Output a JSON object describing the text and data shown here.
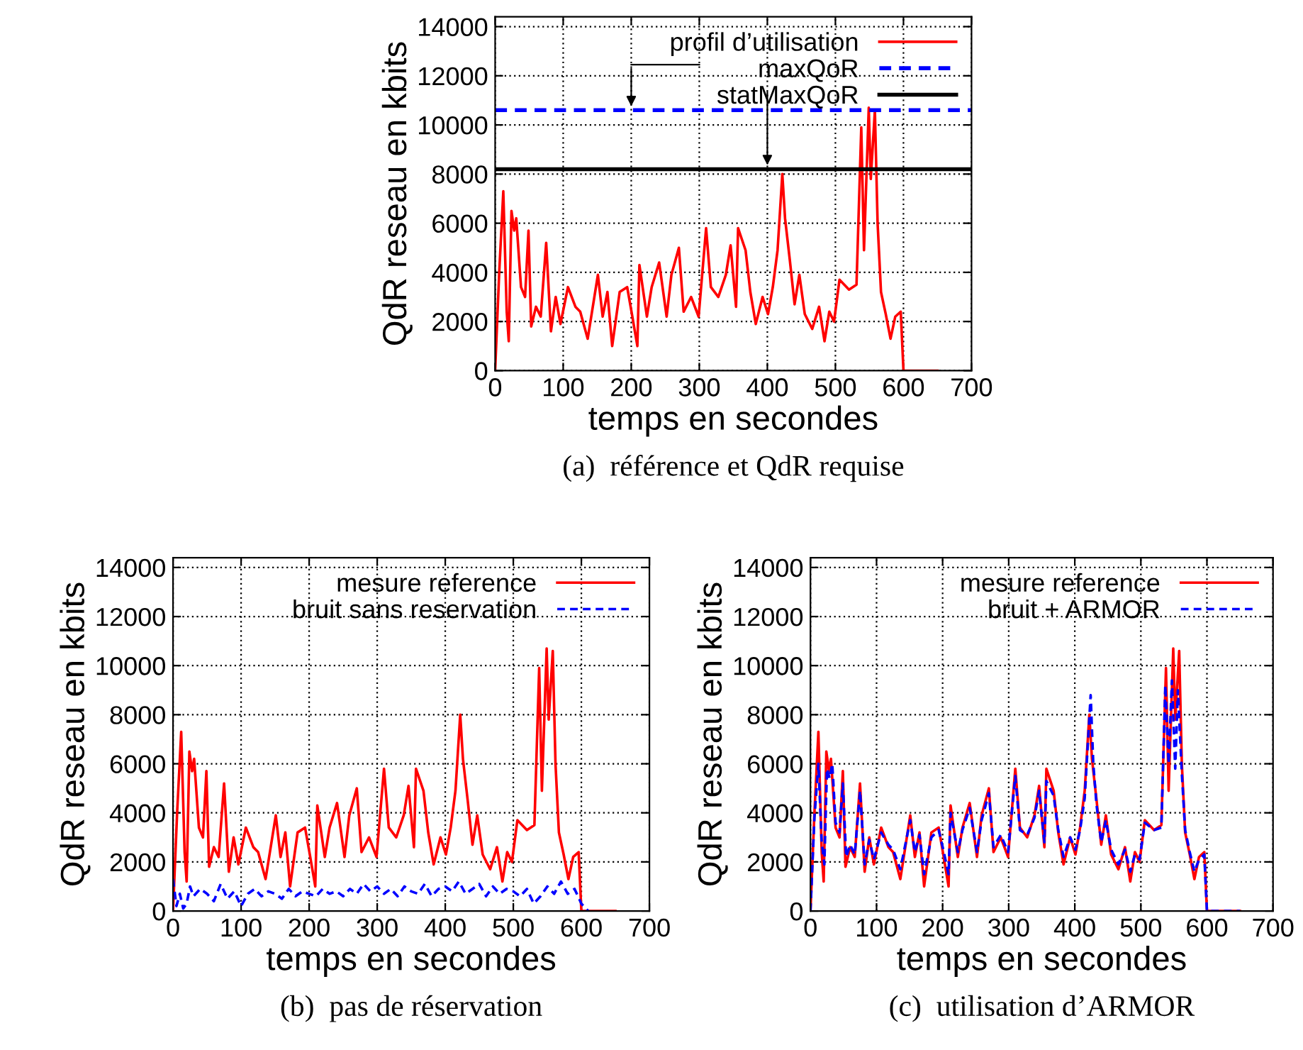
{
  "chart_data": [
    {
      "type": "line",
      "title": "(a)  référence et QdR requise",
      "xlabel": "temps en secondes",
      "ylabel": "QdR reseau en kbits",
      "xlim": [
        0,
        700
      ],
      "ylim": [
        0,
        14400
      ],
      "xticks": [
        0,
        100,
        200,
        300,
        400,
        500,
        600,
        700
      ],
      "yticks": [
        0,
        2000,
        4000,
        6000,
        8000,
        10000,
        12000,
        14000
      ],
      "grid": true,
      "legend": "top right",
      "series": [
        {
          "name": "profil d’utilisation",
          "color": "#ff0000",
          "line_style": "solid",
          "x": [
            0,
            6,
            12,
            17,
            20,
            24,
            28,
            31,
            38,
            44,
            49,
            53,
            60,
            67,
            75,
            82,
            89,
            96,
            107,
            118,
            125,
            136,
            151,
            158,
            165,
            172,
            183,
            194,
            201,
            209,
            212,
            223,
            230,
            241,
            252,
            259,
            270,
            277,
            288,
            299,
            310,
            317,
            328,
            339,
            346,
            354,
            357,
            368,
            375,
            383,
            393,
            401,
            408,
            415,
            422,
            426,
            433,
            440,
            447,
            455,
            466,
            476,
            484,
            491,
            498,
            506,
            520,
            531,
            538,
            542,
            549,
            552,
            558,
            562,
            567,
            574,
            581,
            588,
            596,
            600,
            650
          ],
          "values": [
            0,
            4000,
            7300,
            2400,
            1200,
            6500,
            5700,
            6200,
            3400,
            3000,
            5700,
            1800,
            2600,
            2200,
            5200,
            1600,
            3000,
            1900,
            3400,
            2600,
            2400,
            1300,
            3900,
            2200,
            3200,
            1000,
            3200,
            3400,
            2300,
            1000,
            4300,
            2200,
            3400,
            4400,
            2200,
            3900,
            5000,
            2400,
            3000,
            2200,
            5800,
            3400,
            3000,
            3900,
            5100,
            2600,
            5800,
            4900,
            3200,
            1900,
            3000,
            2300,
            3400,
            4900,
            8000,
            6200,
            4500,
            2700,
            3900,
            2300,
            1700,
            2600,
            1200,
            2400,
            2000,
            3700,
            3300,
            3500,
            9900,
            4900,
            10700,
            7800,
            10600,
            6000,
            3200,
            2300,
            1300,
            2200,
            2400,
            0,
            0
          ]
        }
      ],
      "ref_lines": [
        {
          "axis": "y",
          "value": 10600,
          "label": "maxQoR",
          "color": "#0000ff",
          "line_style": "dashed"
        },
        {
          "axis": "y",
          "value": 8200,
          "label": "statMaxQoR",
          "color": "#000000",
          "line_style": "solid"
        }
      ]
    },
    {
      "type": "line",
      "title": "(b)  pas de réservation",
      "xlabel": "temps en secondes",
      "ylabel": "QdR reseau en kbits",
      "xlim": [
        0,
        700
      ],
      "ylim": [
        0,
        14400
      ],
      "xticks": [
        0,
        100,
        200,
        300,
        400,
        500,
        600,
        700
      ],
      "yticks": [
        0,
        2000,
        4000,
        6000,
        8000,
        10000,
        12000,
        14000
      ],
      "grid": true,
      "legend": "top right",
      "series": [
        {
          "name": "mesure reference",
          "color": "#ff0000",
          "line_style": "solid",
          "x": [
            0,
            6,
            12,
            17,
            20,
            24,
            28,
            31,
            38,
            44,
            49,
            53,
            60,
            67,
            75,
            82,
            89,
            96,
            107,
            118,
            125,
            136,
            151,
            158,
            165,
            172,
            183,
            194,
            201,
            209,
            212,
            223,
            230,
            241,
            252,
            259,
            270,
            277,
            288,
            299,
            310,
            317,
            328,
            339,
            346,
            354,
            357,
            368,
            375,
            383,
            393,
            401,
            408,
            415,
            422,
            426,
            433,
            440,
            447,
            455,
            466,
            476,
            484,
            491,
            498,
            506,
            520,
            531,
            538,
            542,
            549,
            552,
            558,
            562,
            567,
            574,
            581,
            588,
            596,
            600,
            650
          ],
          "values": [
            0,
            4000,
            7300,
            2400,
            1200,
            6500,
            5700,
            6200,
            3400,
            3000,
            5700,
            1800,
            2600,
            2200,
            5200,
            1600,
            3000,
            1900,
            3400,
            2600,
            2400,
            1300,
            3900,
            2200,
            3200,
            1000,
            3200,
            3400,
            2300,
            1000,
            4300,
            2200,
            3400,
            4400,
            2200,
            3900,
            5000,
            2400,
            3000,
            2200,
            5800,
            3400,
            3000,
            3900,
            5100,
            2600,
            5800,
            4900,
            3200,
            1900,
            3000,
            2300,
            3400,
            4900,
            8000,
            6200,
            4500,
            2700,
            3900,
            2300,
            1700,
            2600,
            1200,
            2400,
            2000,
            3700,
            3300,
            3500,
            9900,
            4900,
            10700,
            7800,
            10600,
            6000,
            3200,
            2300,
            1300,
            2200,
            2400,
            0,
            0
          ]
        },
        {
          "name": "bruit sans reservation",
          "color": "#0000ff",
          "line_style": "dashed",
          "x": [
            0,
            5,
            10,
            15,
            20,
            25,
            30,
            40,
            50,
            60,
            70,
            80,
            90,
            100,
            110,
            120,
            130,
            140,
            150,
            160,
            170,
            180,
            190,
            200,
            210,
            220,
            230,
            240,
            250,
            260,
            270,
            280,
            290,
            300,
            310,
            320,
            330,
            340,
            350,
            360,
            370,
            380,
            390,
            400,
            410,
            420,
            430,
            440,
            450,
            460,
            470,
            480,
            490,
            500,
            510,
            520,
            530,
            540,
            550,
            560,
            570,
            580,
            590,
            600,
            610
          ],
          "values": [
            1300,
            200,
            700,
            100,
            300,
            1000,
            600,
            900,
            700,
            400,
            1100,
            500,
            800,
            200,
            700,
            900,
            600,
            800,
            700,
            500,
            900,
            600,
            800,
            700,
            600,
            900,
            700,
            800,
            600,
            900,
            700,
            1100,
            800,
            1000,
            700,
            900,
            600,
            1000,
            800,
            700,
            1100,
            600,
            900,
            1000,
            800,
            1200,
            700,
            900,
            1100,
            600,
            1000,
            700,
            900,
            800,
            600,
            900,
            300,
            600,
            1000,
            700,
            1200,
            700,
            900,
            300,
            0
          ]
        }
      ]
    },
    {
      "type": "line",
      "title": "(c)  utilisation d’ARMOR",
      "xlabel": "temps en secondes",
      "ylabel": "QdR reseau en kbits",
      "xlim": [
        0,
        700
      ],
      "ylim": [
        0,
        14400
      ],
      "xticks": [
        0,
        100,
        200,
        300,
        400,
        500,
        600,
        700
      ],
      "yticks": [
        0,
        2000,
        4000,
        6000,
        8000,
        10000,
        12000,
        14000
      ],
      "grid": true,
      "legend": "top right",
      "series": [
        {
          "name": "mesure reference",
          "color": "#ff0000",
          "line_style": "solid",
          "x": [
            0,
            6,
            12,
            17,
            20,
            24,
            28,
            31,
            38,
            44,
            49,
            53,
            60,
            67,
            75,
            82,
            89,
            96,
            107,
            118,
            125,
            136,
            151,
            158,
            165,
            172,
            183,
            194,
            201,
            209,
            212,
            223,
            230,
            241,
            252,
            259,
            270,
            277,
            288,
            299,
            310,
            317,
            328,
            339,
            346,
            354,
            357,
            368,
            375,
            383,
            393,
            401,
            408,
            415,
            422,
            426,
            433,
            440,
            447,
            455,
            466,
            476,
            484,
            491,
            498,
            506,
            520,
            531,
            538,
            542,
            549,
            552,
            558,
            562,
            567,
            574,
            581,
            588,
            596,
            600,
            650
          ],
          "values": [
            0,
            4000,
            7300,
            2400,
            1200,
            6500,
            5700,
            6200,
            3400,
            3000,
            5700,
            1800,
            2600,
            2200,
            5200,
            1600,
            3000,
            1900,
            3400,
            2600,
            2400,
            1300,
            3900,
            2200,
            3200,
            1000,
            3200,
            3400,
            2300,
            1000,
            4300,
            2200,
            3400,
            4400,
            2200,
            3900,
            5000,
            2400,
            3000,
            2200,
            5800,
            3400,
            3000,
            3900,
            5100,
            2600,
            5800,
            4900,
            3200,
            1900,
            3000,
            2300,
            3400,
            4900,
            8000,
            6200,
            4500,
            2700,
            3900,
            2300,
            1700,
            2600,
            1200,
            2400,
            2000,
            3700,
            3300,
            3500,
            9900,
            4900,
            10700,
            7800,
            10600,
            6000,
            3200,
            2300,
            1300,
            2200,
            2400,
            0,
            0
          ]
        },
        {
          "name": "bruit + ARMOR",
          "color": "#0000ff",
          "line_style": "dashed",
          "x": [
            0,
            6,
            12,
            17,
            21,
            25,
            29,
            33,
            38,
            44,
            49,
            54,
            60,
            67,
            75,
            82,
            89,
            96,
            107,
            118,
            125,
            136,
            151,
            158,
            165,
            172,
            183,
            194,
            201,
            209,
            212,
            223,
            230,
            241,
            252,
            259,
            270,
            277,
            288,
            299,
            310,
            317,
            328,
            339,
            346,
            354,
            357,
            368,
            375,
            383,
            393,
            401,
            408,
            415,
            424,
            428,
            433,
            440,
            447,
            455,
            466,
            476,
            484,
            491,
            498,
            506,
            520,
            531,
            537,
            542,
            547,
            552,
            556,
            562,
            567,
            574,
            581,
            588,
            596,
            600,
            650
          ],
          "values": [
            0,
            3800,
            6000,
            2800,
            1900,
            5800,
            5400,
            6000,
            3600,
            3200,
            5200,
            2200,
            2700,
            2300,
            4900,
            1900,
            2900,
            2100,
            3200,
            2700,
            2500,
            1700,
            3700,
            2400,
            3100,
            1500,
            3000,
            3300,
            2500,
            1500,
            4000,
            2400,
            3300,
            4200,
            2400,
            3700,
            4800,
            2600,
            3100,
            2400,
            5500,
            3300,
            3100,
            3800,
            4900,
            2800,
            5300,
            4700,
            3300,
            2200,
            3000,
            2500,
            3300,
            4600,
            8800,
            6000,
            4300,
            2800,
            3700,
            2500,
            1900,
            2500,
            1600,
            2300,
            2100,
            3600,
            3300,
            3400,
            9200,
            6000,
            9400,
            5800,
            9000,
            5600,
            3300,
            2400,
            1600,
            2100,
            2300,
            0,
            0
          ]
        }
      ]
    }
  ]
}
